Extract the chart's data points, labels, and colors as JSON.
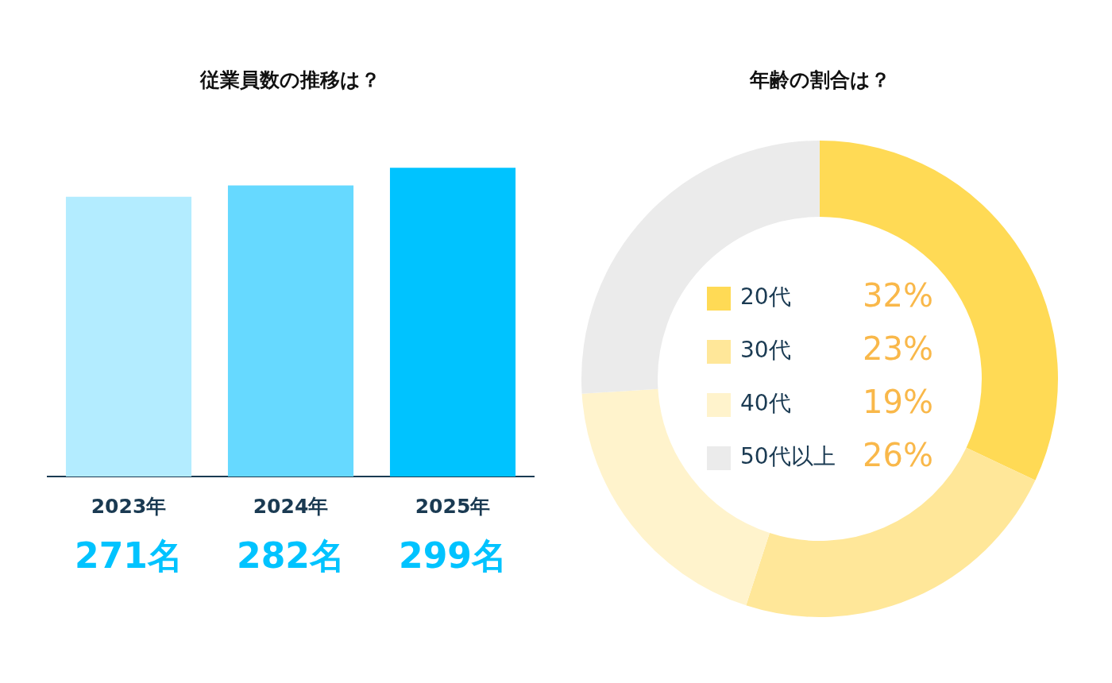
{
  "chart_data": [
    {
      "type": "bar",
      "title": "従業員数の推移は？",
      "categories": [
        "2023年",
        "2024年",
        "2025年"
      ],
      "values": [
        271,
        282,
        299
      ],
      "colors": [
        "#b3ecff",
        "#66d9ff",
        "#00c3ff"
      ],
      "value_labels": [
        "271名",
        "282名",
        "299名"
      ],
      "tick_labels": "x",
      "grid": false,
      "legend": false
    },
    {
      "type": "donut",
      "title": "年齢の割合は？",
      "categories": [
        "20代",
        "30代",
        "40代",
        "50代以上"
      ],
      "values": [
        32,
        23,
        19,
        26
      ],
      "colors": [
        "#ffda55",
        "#ffe799",
        "#fff3cc",
        "#ebebeb"
      ],
      "value_labels": [
        "32%",
        "23%",
        "19%",
        "26%"
      ],
      "legend": "center"
    }
  ]
}
